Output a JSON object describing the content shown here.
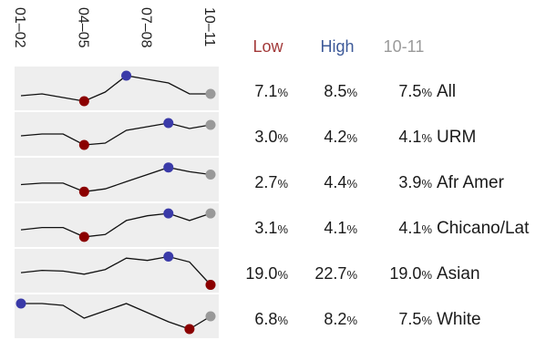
{
  "chart_data": {
    "type": "line",
    "x": [
      "01-02",
      "02-03",
      "03-04",
      "04-05",
      "05-06",
      "06-07",
      "07-08",
      "08-09",
      "09-10",
      "10-11"
    ],
    "x_tick_labels": [
      "01–02",
      "04–05",
      "07–08",
      "10–11"
    ],
    "columns": {
      "low": "Low",
      "high": "High",
      "last": "10-11"
    },
    "colors": {
      "low": "#8b0000",
      "high": "#3a3aa8",
      "last": "#999999",
      "low_header": "#a33a3a",
      "high_header": "#3d5a99",
      "last_header": "#9a9a9a"
    },
    "series": [
      {
        "name": "All",
        "values": [
          7.4,
          7.5,
          7.3,
          7.1,
          7.6,
          8.5,
          8.3,
          8.1,
          7.5,
          7.5
        ],
        "low": "7.1",
        "high": "8.5",
        "last": "7.5",
        "ylim": [
          6.9,
          8.7
        ]
      },
      {
        "name": "URM",
        "values": [
          3.5,
          3.6,
          3.6,
          3.0,
          3.1,
          3.8,
          4.0,
          4.2,
          3.9,
          4.1
        ],
        "low": "3.0",
        "high": "4.2",
        "last": "4.1",
        "ylim": [
          2.7,
          4.5
        ]
      },
      {
        "name": "Afr Amer",
        "values": [
          3.2,
          3.3,
          3.3,
          2.7,
          2.9,
          3.4,
          3.9,
          4.4,
          4.1,
          3.9
        ],
        "low": "2.7",
        "high": "4.4",
        "last": "3.9",
        "ylim": [
          2.4,
          4.7
        ]
      },
      {
        "name": "Chicano/Lat",
        "values": [
          3.4,
          3.5,
          3.5,
          3.1,
          3.2,
          3.8,
          4.0,
          4.1,
          3.8,
          4.1
        ],
        "low": "3.1",
        "high": "4.1",
        "last": "4.1",
        "ylim": [
          2.9,
          4.3
        ]
      },
      {
        "name": "Asian",
        "values": [
          20.6,
          20.9,
          20.8,
          20.4,
          21.0,
          22.5,
          22.2,
          22.7,
          22.0,
          19.0
        ],
        "low": "19.0",
        "high": "22.7",
        "last": "19.0",
        "ylim": [
          18.7,
          23.0
        ]
      },
      {
        "name": "White",
        "values": [
          8.2,
          8.2,
          8.1,
          7.4,
          7.8,
          8.2,
          7.7,
          7.2,
          6.8,
          7.5
        ],
        "low": "6.8",
        "high": "8.2",
        "last": "7.5",
        "ylim": [
          6.6,
          8.4
        ]
      }
    ]
  }
}
